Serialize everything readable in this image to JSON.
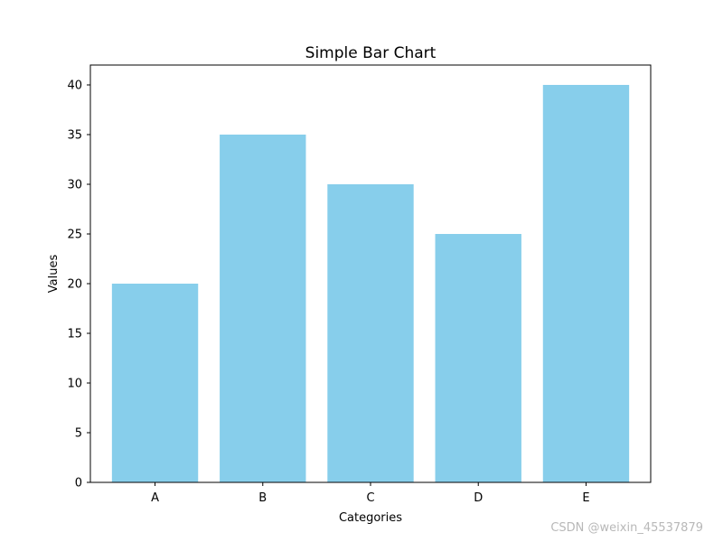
{
  "chart_data": {
    "type": "bar",
    "title": "Simple Bar Chart",
    "xlabel": "Categories",
    "ylabel": "Values",
    "categories": [
      "A",
      "B",
      "C",
      "D",
      "E"
    ],
    "values": [
      20,
      35,
      30,
      25,
      40
    ],
    "yticks": [
      "0",
      "5",
      "10",
      "15",
      "20",
      "25",
      "30",
      "35",
      "40"
    ],
    "ylim": [
      0,
      42
    ],
    "bar_color": "#87CEEB",
    "grid": false,
    "legend": "none"
  },
  "watermark": "CSDN @weixin_45537879"
}
